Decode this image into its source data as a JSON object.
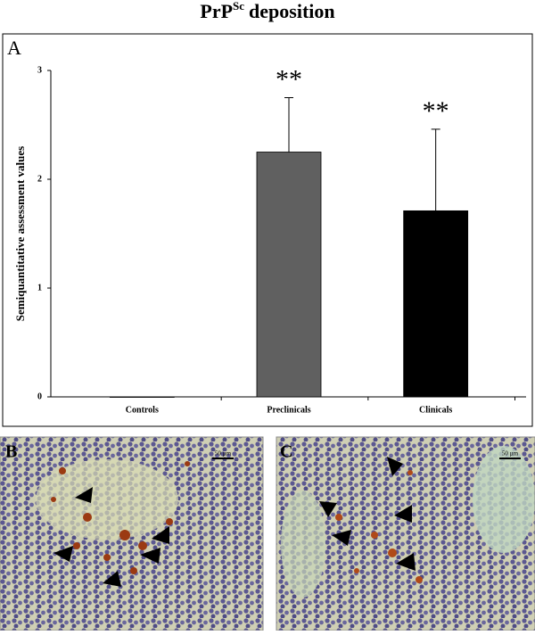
{
  "title": {
    "base": "PrP",
    "superscript": "Sc",
    "rest": "deposition"
  },
  "panels": {
    "a": "A",
    "b": "B",
    "c": "C"
  },
  "scale_bar": {
    "b": "50 µm",
    "c": "50 µm"
  },
  "chart_data": {
    "type": "bar",
    "y_label": "Semiquantitative assessment values",
    "categories": [
      "Controls",
      "Preclinicals",
      "Clinicals"
    ],
    "values": [
      0,
      2.25,
      1.71
    ],
    "errors": [
      0,
      0.5,
      0.75
    ],
    "annotations": [
      null,
      "**",
      "**"
    ],
    "colors": [
      "#ffffff",
      "#606060",
      "#000000"
    ],
    "ylim": [
      0,
      3
    ],
    "yticks": [
      0,
      1,
      2,
      3
    ],
    "grid": false
  }
}
